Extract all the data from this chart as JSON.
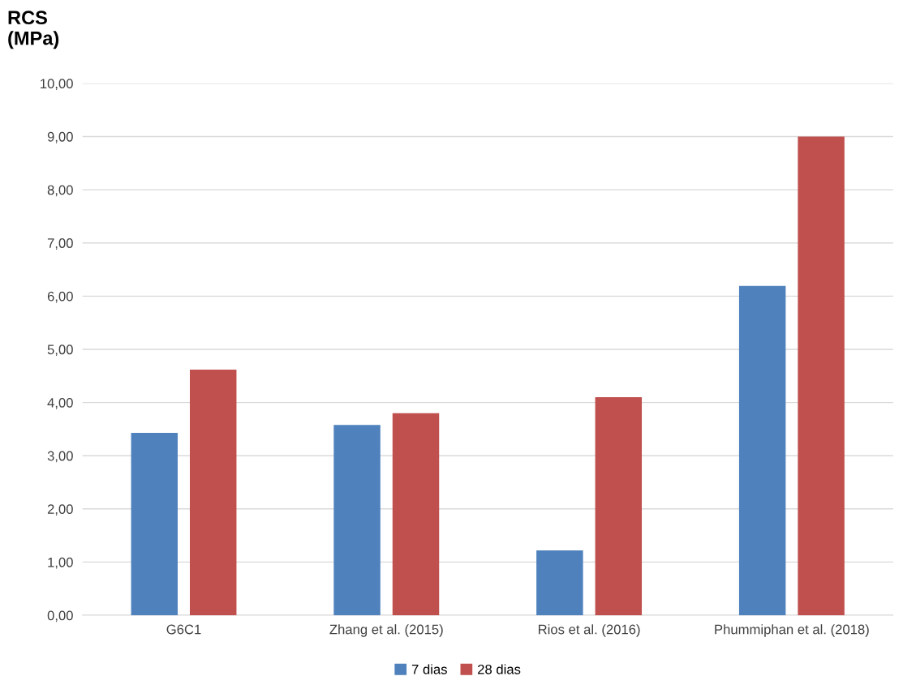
{
  "chart_data": {
    "type": "bar",
    "ylabel": "RCS\n(MPa)",
    "categories": [
      "G6C1",
      "Zhang et al. (2015)",
      "Rios et al. (2016)",
      "Phummiphan et al. (2018)"
    ],
    "series": [
      {
        "name": "7 dias",
        "color": "#4f81bd",
        "values": [
          3.43,
          3.58,
          1.22,
          6.19
        ]
      },
      {
        "name": "28 dias",
        "color": "#c0504d",
        "values": [
          4.62,
          3.8,
          4.1,
          9.0
        ]
      }
    ],
    "ylim": [
      0,
      10
    ],
    "yticks": [
      {
        "value": 0,
        "label": "0,00"
      },
      {
        "value": 1,
        "label": "1,00"
      },
      {
        "value": 2,
        "label": "2,00"
      },
      {
        "value": 3,
        "label": "3,00"
      },
      {
        "value": 4,
        "label": "4,00"
      },
      {
        "value": 5,
        "label": "5,00"
      },
      {
        "value": 6,
        "label": "6,00"
      },
      {
        "value": 7,
        "label": "7,00"
      },
      {
        "value": 8,
        "label": "8,00"
      },
      {
        "value": 9,
        "label": "9,00"
      },
      {
        "value": 10,
        "label": "10,00"
      }
    ],
    "grid": "y",
    "legend": "bottom"
  }
}
